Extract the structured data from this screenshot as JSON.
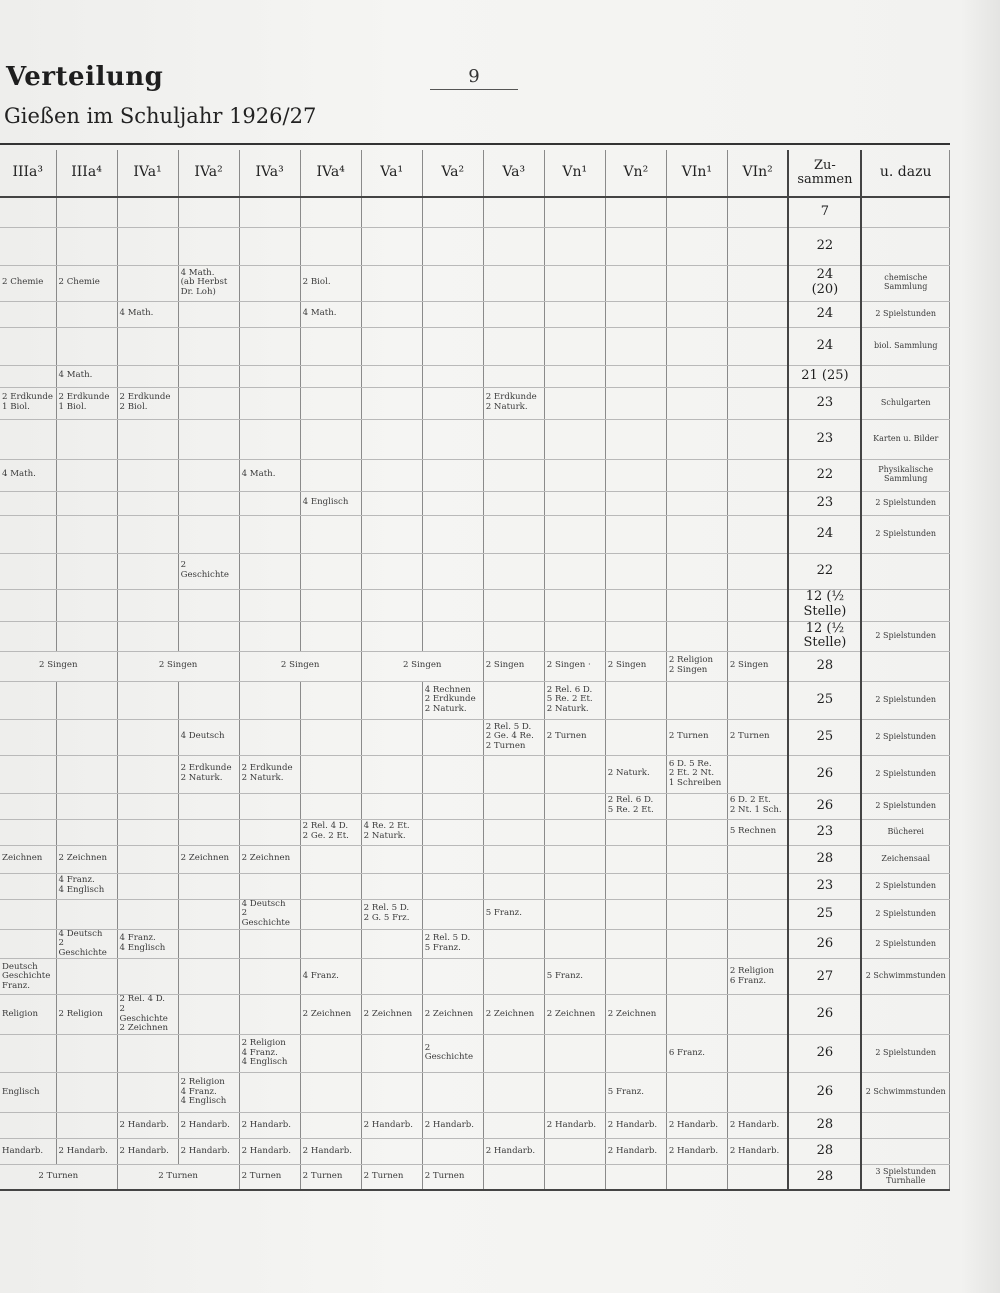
{
  "page": {
    "title": "Verteilung",
    "subtitle": "Gießen im Schuljahr 1926/27",
    "number": "9"
  },
  "table": {
    "headers": [
      "IIIa³",
      "IIIa⁴",
      "IVa¹",
      "IVa²",
      "IVa³",
      "IVa⁴",
      "Va¹",
      "Va²",
      "Va³",
      "Vn¹",
      "Vn²",
      "VIn¹",
      "VIn²",
      "Zu-\nsammen",
      "u. dazu"
    ],
    "rows": [
      {
        "cells": [
          "",
          "",
          "",
          "",
          "",
          "",
          "",
          "",
          "",
          "",
          "",
          "",
          ""
        ],
        "total": "7",
        "extra": ""
      },
      {
        "cells": [
          "",
          "",
          "",
          "",
          "",
          "",
          "",
          "",
          "",
          "",
          "",
          "",
          ""
        ],
        "total": "22",
        "extra": ""
      },
      {
        "cells": [
          "2 Chemie",
          "2 Chemie",
          "",
          "4 Math.\n(ab Herbst\nDr. Loh)",
          "",
          "2 Biol.",
          "",
          "",
          "",
          "",
          "",
          "",
          ""
        ],
        "total": "24\n(20)",
        "extra": "chemische\nSammlung"
      },
      {
        "cells": [
          "",
          "",
          "4 Math.",
          "",
          "",
          "4 Math.",
          "",
          "",
          "",
          "",
          "",
          "",
          ""
        ],
        "total": "24",
        "extra": "2 Spielstunden"
      },
      {
        "cells": [
          "",
          "",
          "",
          "",
          "",
          "",
          "",
          "",
          "",
          "",
          "",
          "",
          ""
        ],
        "total": "24",
        "extra": "biol. Sammlung"
      },
      {
        "cells": [
          "",
          "4 Math.",
          "",
          "",
          "",
          "",
          "",
          "",
          "",
          "",
          "",
          "",
          ""
        ],
        "total": "21 (25)",
        "extra": ""
      },
      {
        "cells": [
          "2 Erdkunde\n1 Biol.",
          "2 Erdkunde\n1 Biol.",
          "2 Erdkunde\n2 Biol.",
          "",
          "",
          "",
          "",
          "",
          "2 Erdkunde\n2 Naturk.",
          "",
          "",
          "",
          ""
        ],
        "total": "23",
        "extra": "Schulgarten"
      },
      {
        "cells": [
          "",
          "",
          "",
          "",
          "",
          "",
          "",
          "",
          "",
          "",
          "",
          "",
          ""
        ],
        "total": "23",
        "extra": "Karten u. Bilder"
      },
      {
        "cells": [
          "4 Math.",
          "",
          "",
          "",
          "4 Math.",
          "",
          "",
          "",
          "",
          "",
          "",
          "",
          ""
        ],
        "total": "22",
        "extra": "Physikalische\nSammlung"
      },
      {
        "cells": [
          "",
          "",
          "",
          "",
          "",
          "4 Englisch",
          "",
          "",
          "",
          "",
          "",
          "",
          ""
        ],
        "total": "23",
        "extra": "2 Spielstunden"
      },
      {
        "cells": [
          "",
          "",
          "",
          "",
          "",
          "",
          "",
          "",
          "",
          "",
          "",
          "",
          ""
        ],
        "total": "24",
        "extra": "2 Spielstunden"
      },
      {
        "cells": [
          "",
          "",
          "",
          "2 Geschichte",
          "",
          "",
          "",
          "",
          "",
          "",
          "",
          "",
          ""
        ],
        "total": "22",
        "extra": ""
      },
      {
        "cells": [
          "",
          "",
          "",
          "",
          "",
          "",
          "",
          "",
          "",
          "",
          "",
          "",
          ""
        ],
        "total": "12 (½ Stelle)",
        "extra": ""
      },
      {
        "cells": [
          "",
          "",
          "",
          "",
          "",
          "",
          "",
          "",
          "",
          "",
          "",
          "",
          ""
        ],
        "total": "12 (½ Stelle)",
        "extra": "2 Spielstunden"
      },
      {
        "spans": [
          "2 Singen",
          "2 Singen",
          "2 Singen",
          "2 Singen"
        ],
        "cells": [
          "2 Singen",
          "2 Singen ·",
          "2 Singen",
          "2 Religion\n2 Singen",
          "2 Singen"
        ],
        "total": "28",
        "extra": ""
      },
      {
        "cells": [
          "",
          "",
          "",
          "",
          "",
          "",
          "",
          "4 Rechnen\n2 Erdkunde\n2 Naturk.",
          "",
          "2 Rel. 6 D.\n5 Re. 2 Et.\n2 Naturk.",
          "",
          "",
          ""
        ],
        "total": "25",
        "extra": "2 Spielstunden"
      },
      {
        "cells": [
          "",
          "",
          "",
          "4 Deutsch",
          "",
          "",
          "",
          "",
          "2 Rel. 5 D.\n2 Ge. 4 Re.\n2 Turnen",
          "2 Turnen",
          "",
          "2 Turnen",
          "2 Turnen"
        ],
        "total": "25",
        "extra": "2 Spielstunden"
      },
      {
        "cells": [
          "",
          "",
          "",
          "2 Erdkunde\n2 Naturk.",
          "2 Erdkunde\n2 Naturk.",
          "",
          "",
          "",
          "",
          "",
          "2 Naturk.",
          "6 D. 5 Re.\n2 Et. 2 Nt.\n1 Schreiben",
          ""
        ],
        "total": "26",
        "extra": "2 Spielstunden"
      },
      {
        "cells": [
          "",
          "",
          "",
          "",
          "",
          "",
          "",
          "",
          "",
          "",
          "2 Rel. 6 D.\n5 Re. 2 Et.",
          "",
          "6 D. 2 Et.\n2 Nt. 1 Sch."
        ],
        "total": "26",
        "extra": "2 Spielstunden"
      },
      {
        "cells": [
          "",
          "",
          "",
          "",
          "",
          "2 Rel. 4 D.\n2 Ge. 2 Et.",
          "4 Re. 2 Et.\n2 Naturk.",
          "",
          "",
          "",
          "",
          "",
          "5 Rechnen"
        ],
        "total": "23",
        "extra": "Bücherei"
      },
      {
        "cells": [
          "Zeichnen",
          "2 Zeichnen",
          "",
          "2 Zeichnen",
          "2 Zeichnen",
          "",
          "",
          "",
          "",
          "",
          "",
          "",
          ""
        ],
        "total": "28",
        "extra": "Zeichensaal"
      },
      {
        "cells": [
          "",
          "4 Franz.\n4 Englisch",
          "",
          "",
          "",
          "",
          "",
          "",
          "",
          "",
          "",
          "",
          ""
        ],
        "total": "23",
        "extra": "2 Spielstunden"
      },
      {
        "cells": [
          "",
          "",
          "",
          "",
          "4 Deutsch\n2 Geschichte",
          "",
          "2 Rel. 5 D.\n2 G. 5 Frz.",
          "",
          "5 Franz.",
          "",
          "",
          "",
          ""
        ],
        "total": "25",
        "extra": "2 Spielstunden"
      },
      {
        "cells": [
          "",
          "4 Deutsch\n2 Geschichte",
          "4 Franz.\n4 Englisch",
          "",
          "",
          "",
          "",
          "2 Rel. 5 D.\n5 Franz.",
          "",
          "",
          "",
          "",
          ""
        ],
        "total": "26",
        "extra": "2 Spielstunden"
      },
      {
        "cells": [
          "Deutsch\nGeschichte\nFranz.",
          "",
          "",
          "",
          "",
          "4 Franz.",
          "",
          "",
          "",
          "5 Franz.",
          "",
          "",
          "2 Religion\n6 Franz."
        ],
        "total": "27",
        "extra": "2 Schwimmstunden"
      },
      {
        "cells": [
          "Religion",
          "2 Religion",
          "2 Rel. 4 D.\n2 Geschichte\n2 Zeichnen",
          "",
          "",
          "2 Zeichnen",
          "2 Zeichnen",
          "2 Zeichnen",
          "2 Zeichnen",
          "2 Zeichnen",
          "2 Zeichnen",
          "",
          ""
        ],
        "total": "26",
        "extra": ""
      },
      {
        "cells": [
          "",
          "",
          "",
          "",
          "2 Religion\n4 Franz.\n4 Englisch",
          "",
          "",
          "2 Geschichte",
          "",
          "",
          "",
          "6 Franz.",
          ""
        ],
        "total": "26",
        "extra": "2 Spielstunden"
      },
      {
        "cells": [
          "Englisch",
          "",
          "",
          "2 Religion\n4 Franz.\n4 Englisch",
          "",
          "",
          "",
          "",
          "",
          "",
          "5 Franz.",
          "",
          ""
        ],
        "total": "26",
        "extra": "2 Schwimmstunden"
      },
      {
        "cells": [
          "",
          "",
          "2 Handarb.",
          "2 Handarb.",
          "2 Handarb.",
          "",
          "2 Handarb.",
          "2 Handarb.",
          "",
          "2 Handarb.",
          "2 Handarb.",
          "2 Handarb.",
          "2 Handarb."
        ],
        "total": "28",
        "extra": ""
      },
      {
        "cells": [
          "Handarb.",
          "2 Handarb.",
          "2 Handarb.",
          "2 Handarb.",
          "2 Handarb.",
          "2 Handarb.",
          "",
          "",
          "2 Handarb.",
          "",
          "2 Handarb.",
          "2 Handarb.",
          "2 Handarb."
        ],
        "total": "28",
        "extra": ""
      },
      {
        "spans": [
          "2 Turnen",
          "2 Turnen"
        ],
        "cells": [
          "2 Turnen",
          "2 Turnen",
          "2 Turnen",
          "2 Turnen",
          "",
          "",
          "",
          "",
          ""
        ],
        "total": "28",
        "extra": "3 Spielstunden\nTurnhalle"
      }
    ]
  }
}
